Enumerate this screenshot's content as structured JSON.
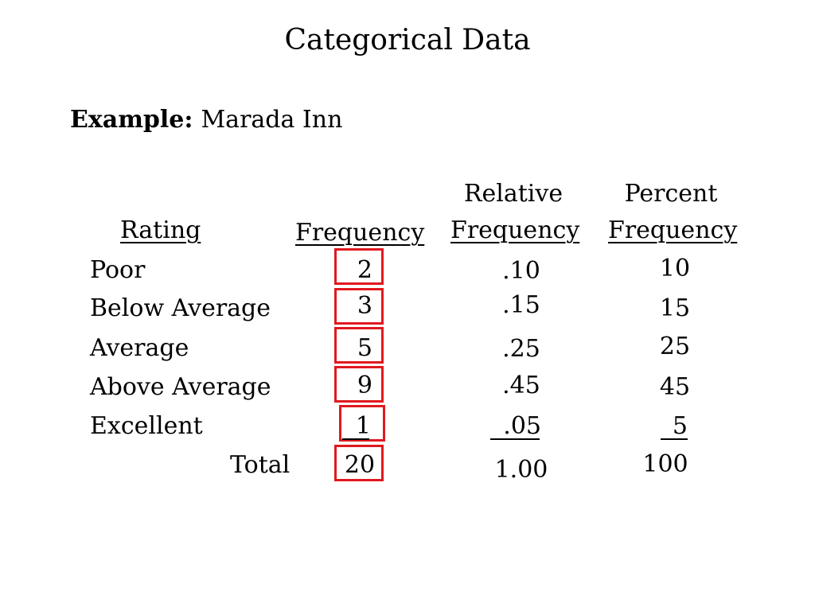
{
  "title": "Categorical Data",
  "example": {
    "label": "Example:",
    "name": "Marada Inn"
  },
  "headers": {
    "rating": "Rating",
    "frequency": "Frequency",
    "relative_line1": "Relative",
    "relative_line2": "Frequency",
    "percent_line1": "Percent",
    "percent_line2": "Frequency"
  },
  "rows": [
    {
      "rating": "Poor",
      "frequency": "2",
      "relative": ".10",
      "percent": "10"
    },
    {
      "rating": "Below Average",
      "frequency": "3",
      "relative": ".15",
      "percent": "15"
    },
    {
      "rating": "Average",
      "frequency": "5",
      "relative": ".25",
      "percent": "25"
    },
    {
      "rating": "Above Average",
      "frequency": "9",
      "relative": ".45",
      "percent": "45"
    },
    {
      "rating": "Excellent",
      "frequency": "1",
      "relative": ".05",
      "percent": "5"
    }
  ],
  "total": {
    "label": "Total",
    "frequency": "20",
    "relative": "1.00",
    "percent": "100"
  },
  "colors": {
    "highlight_box": "#e0191f"
  }
}
